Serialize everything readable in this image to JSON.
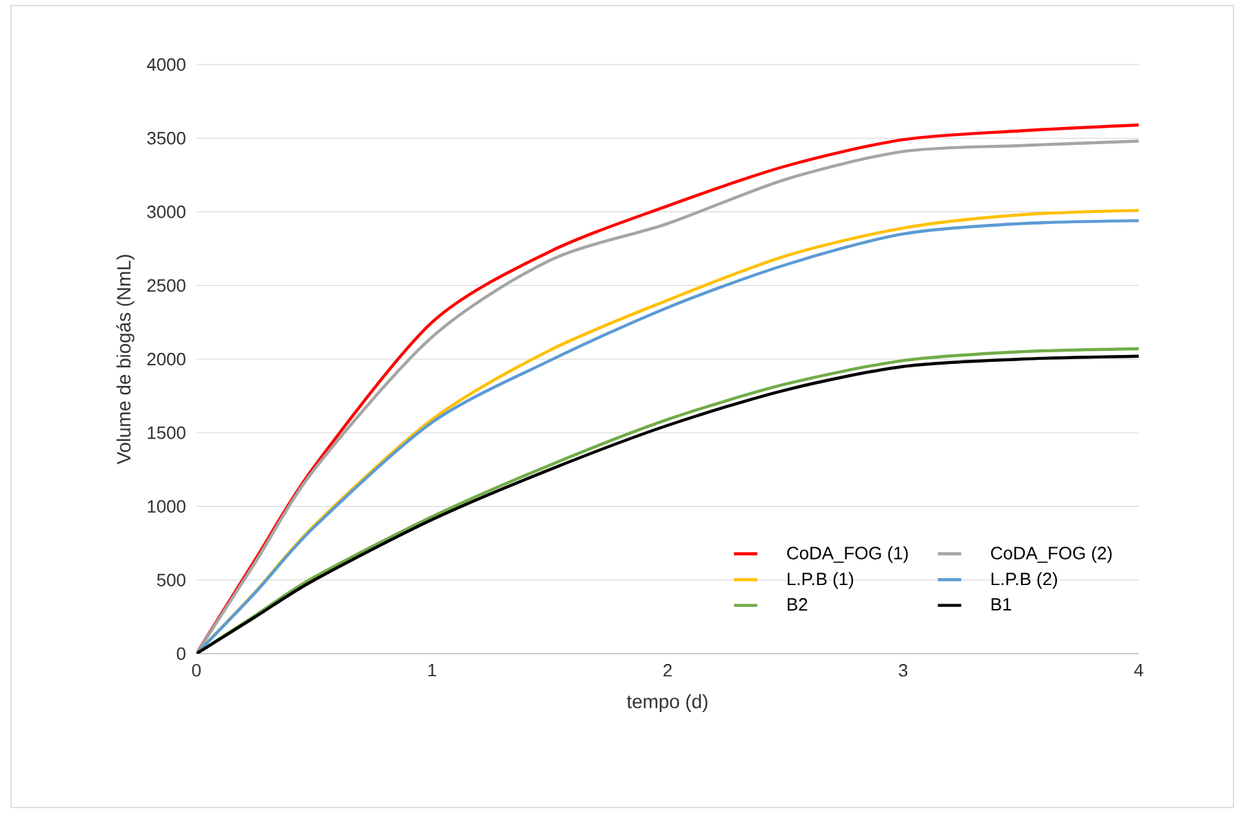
{
  "chart_data": {
    "type": "line",
    "xlabel": "tempo (d)",
    "ylabel": "Volume de biogás (NmL)",
    "xlim": [
      0,
      4
    ],
    "ylim": [
      0,
      4000
    ],
    "xticks": [
      0,
      1,
      2,
      3,
      4
    ],
    "yticks": [
      0,
      500,
      1000,
      1500,
      2000,
      2500,
      3000,
      3500,
      4000
    ],
    "grid": "y",
    "legend": "bottom right",
    "marker": "none",
    "line_style": "solid",
    "x": [
      0,
      0.25,
      0.5,
      1,
      1.5,
      2,
      2.5,
      3,
      3.5,
      4
    ],
    "series": [
      {
        "name": "CoDA_FOG (1)",
        "color": "#ff0000",
        "values": [
          0,
          640,
          1270,
          2250,
          2730,
          3040,
          3310,
          3490,
          3550,
          3590
        ]
      },
      {
        "name": "CoDA_FOG (2)",
        "color": "#a5a5a5",
        "values": [
          0,
          620,
          1250,
          2150,
          2670,
          2920,
          3220,
          3410,
          3450,
          3480
        ]
      },
      {
        "name": "L.P.B (1)",
        "color": "#ffc000",
        "values": [
          0,
          420,
          870,
          1590,
          2060,
          2400,
          2700,
          2890,
          2980,
          3010
        ]
      },
      {
        "name": "L.P.B (2)",
        "color": "#5b9bd5",
        "values": [
          0,
          415,
          860,
          1570,
          1990,
          2350,
          2640,
          2850,
          2920,
          2940
        ]
      },
      {
        "name": "B2",
        "color": "#70ad47",
        "values": [
          0,
          260,
          520,
          930,
          1280,
          1590,
          1830,
          1990,
          2050,
          2070
        ]
      },
      {
        "name": "B1",
        "color": "#000000",
        "values": [
          0,
          250,
          500,
          910,
          1250,
          1550,
          1790,
          1950,
          2000,
          2020
        ]
      }
    ]
  }
}
